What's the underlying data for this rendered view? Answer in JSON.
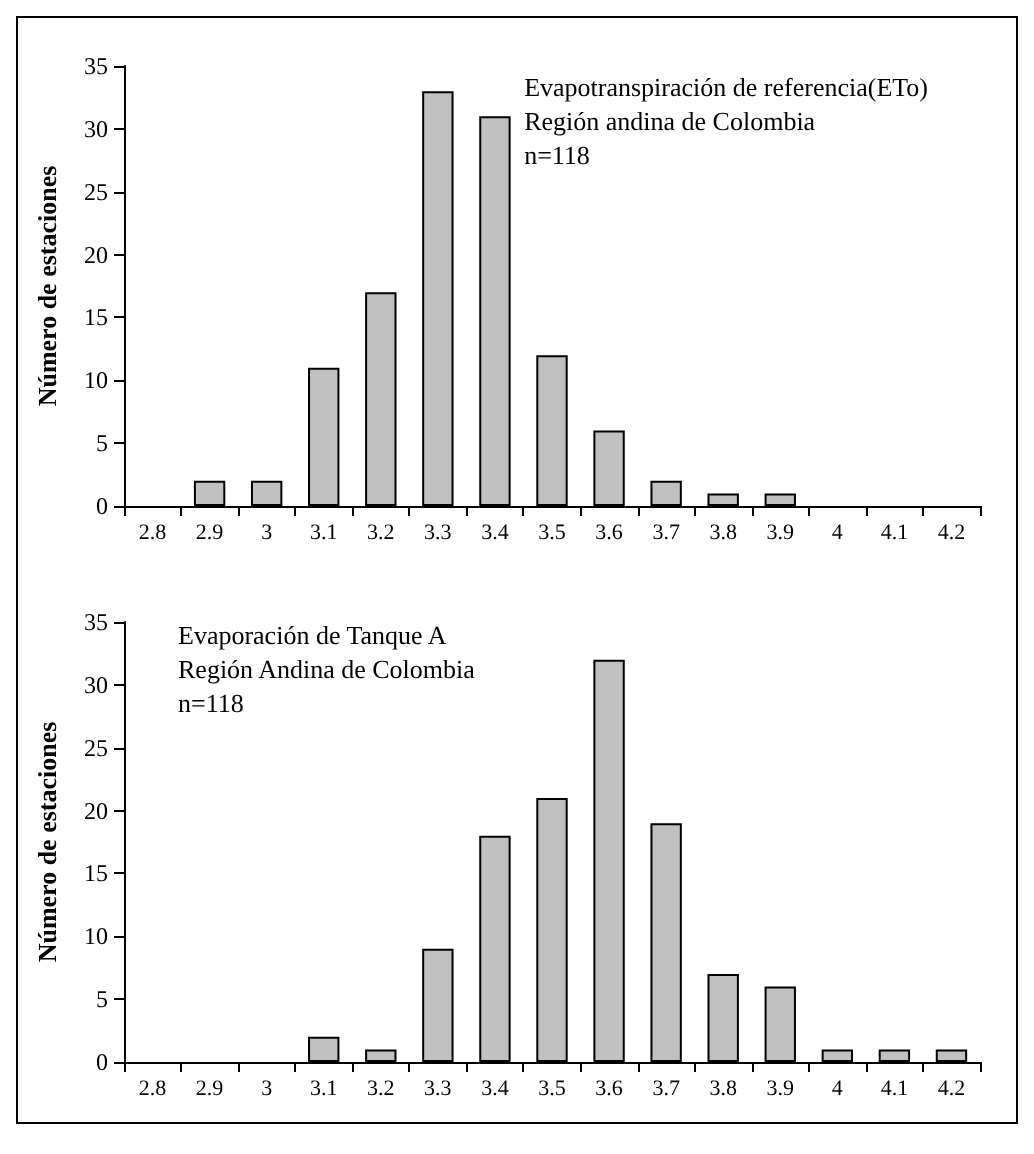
{
  "chart_data": [
    {
      "type": "bar",
      "ylabel": "Número de estaciones",
      "annotations": [
        "Evapotranspiración de referencia(ETo)",
        "Región andina de Colombia",
        "n=118"
      ],
      "categories": [
        "2.8",
        "2.9",
        "3",
        "3.1",
        "3.2",
        "3.3",
        "3.4",
        "3.5",
        "3.6",
        "3.7",
        "3.8",
        "3.9",
        "4",
        "4.1",
        "4.2"
      ],
      "values": [
        0,
        2,
        2,
        11,
        17,
        33,
        31,
        12,
        6,
        2,
        1,
        1,
        0,
        0,
        0
      ],
      "color": "#c0c0c0",
      "ylim": [
        0,
        35
      ],
      "yticks": [
        0,
        5,
        10,
        15,
        20,
        25,
        30,
        35
      ]
    },
    {
      "type": "bar",
      "ylabel": "Número de estaciones",
      "annotations": [
        "Evaporación de Tanque A",
        "Región Andina de Colombia",
        "n=118"
      ],
      "categories": [
        "2.8",
        "2.9",
        "3",
        "3.1",
        "3.2",
        "3.3",
        "3.4",
        "3.5",
        "3.6",
        "3.7",
        "3.8",
        "3.9",
        "4",
        "4.1",
        "4.2"
      ],
      "values": [
        0,
        0,
        0,
        2,
        1,
        9,
        18,
        21,
        32,
        19,
        7,
        6,
        1,
        1,
        1
      ],
      "color": "#c0c0c0",
      "ylim": [
        0,
        35
      ],
      "yticks": [
        0,
        5,
        10,
        15,
        20,
        25,
        30,
        35
      ]
    }
  ]
}
